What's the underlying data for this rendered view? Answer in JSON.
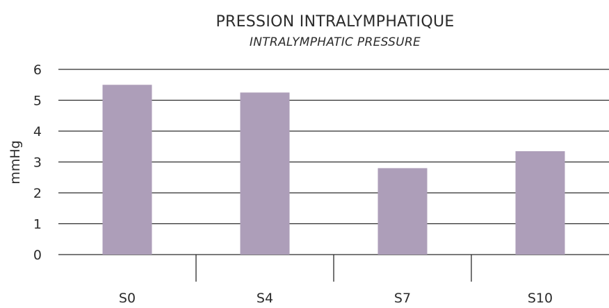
{
  "chart_data": {
    "type": "bar",
    "title": "PRESSION INTRALYMPHATIQUE",
    "subtitle": "INTRALYMPHATIC PRESSURE",
    "xlabel": "",
    "ylabel": "mmHg",
    "categories": [
      "S0",
      "S4",
      "S7",
      "S10"
    ],
    "values": [
      5.5,
      5.25,
      2.8,
      3.35
    ],
    "ylim": [
      0,
      6
    ],
    "yticks": [
      0,
      1,
      2,
      3,
      4,
      5,
      6
    ],
    "grid": true,
    "legend": "none",
    "bar_color": "#ad9eb9",
    "text_color": "#2b2b2b"
  }
}
